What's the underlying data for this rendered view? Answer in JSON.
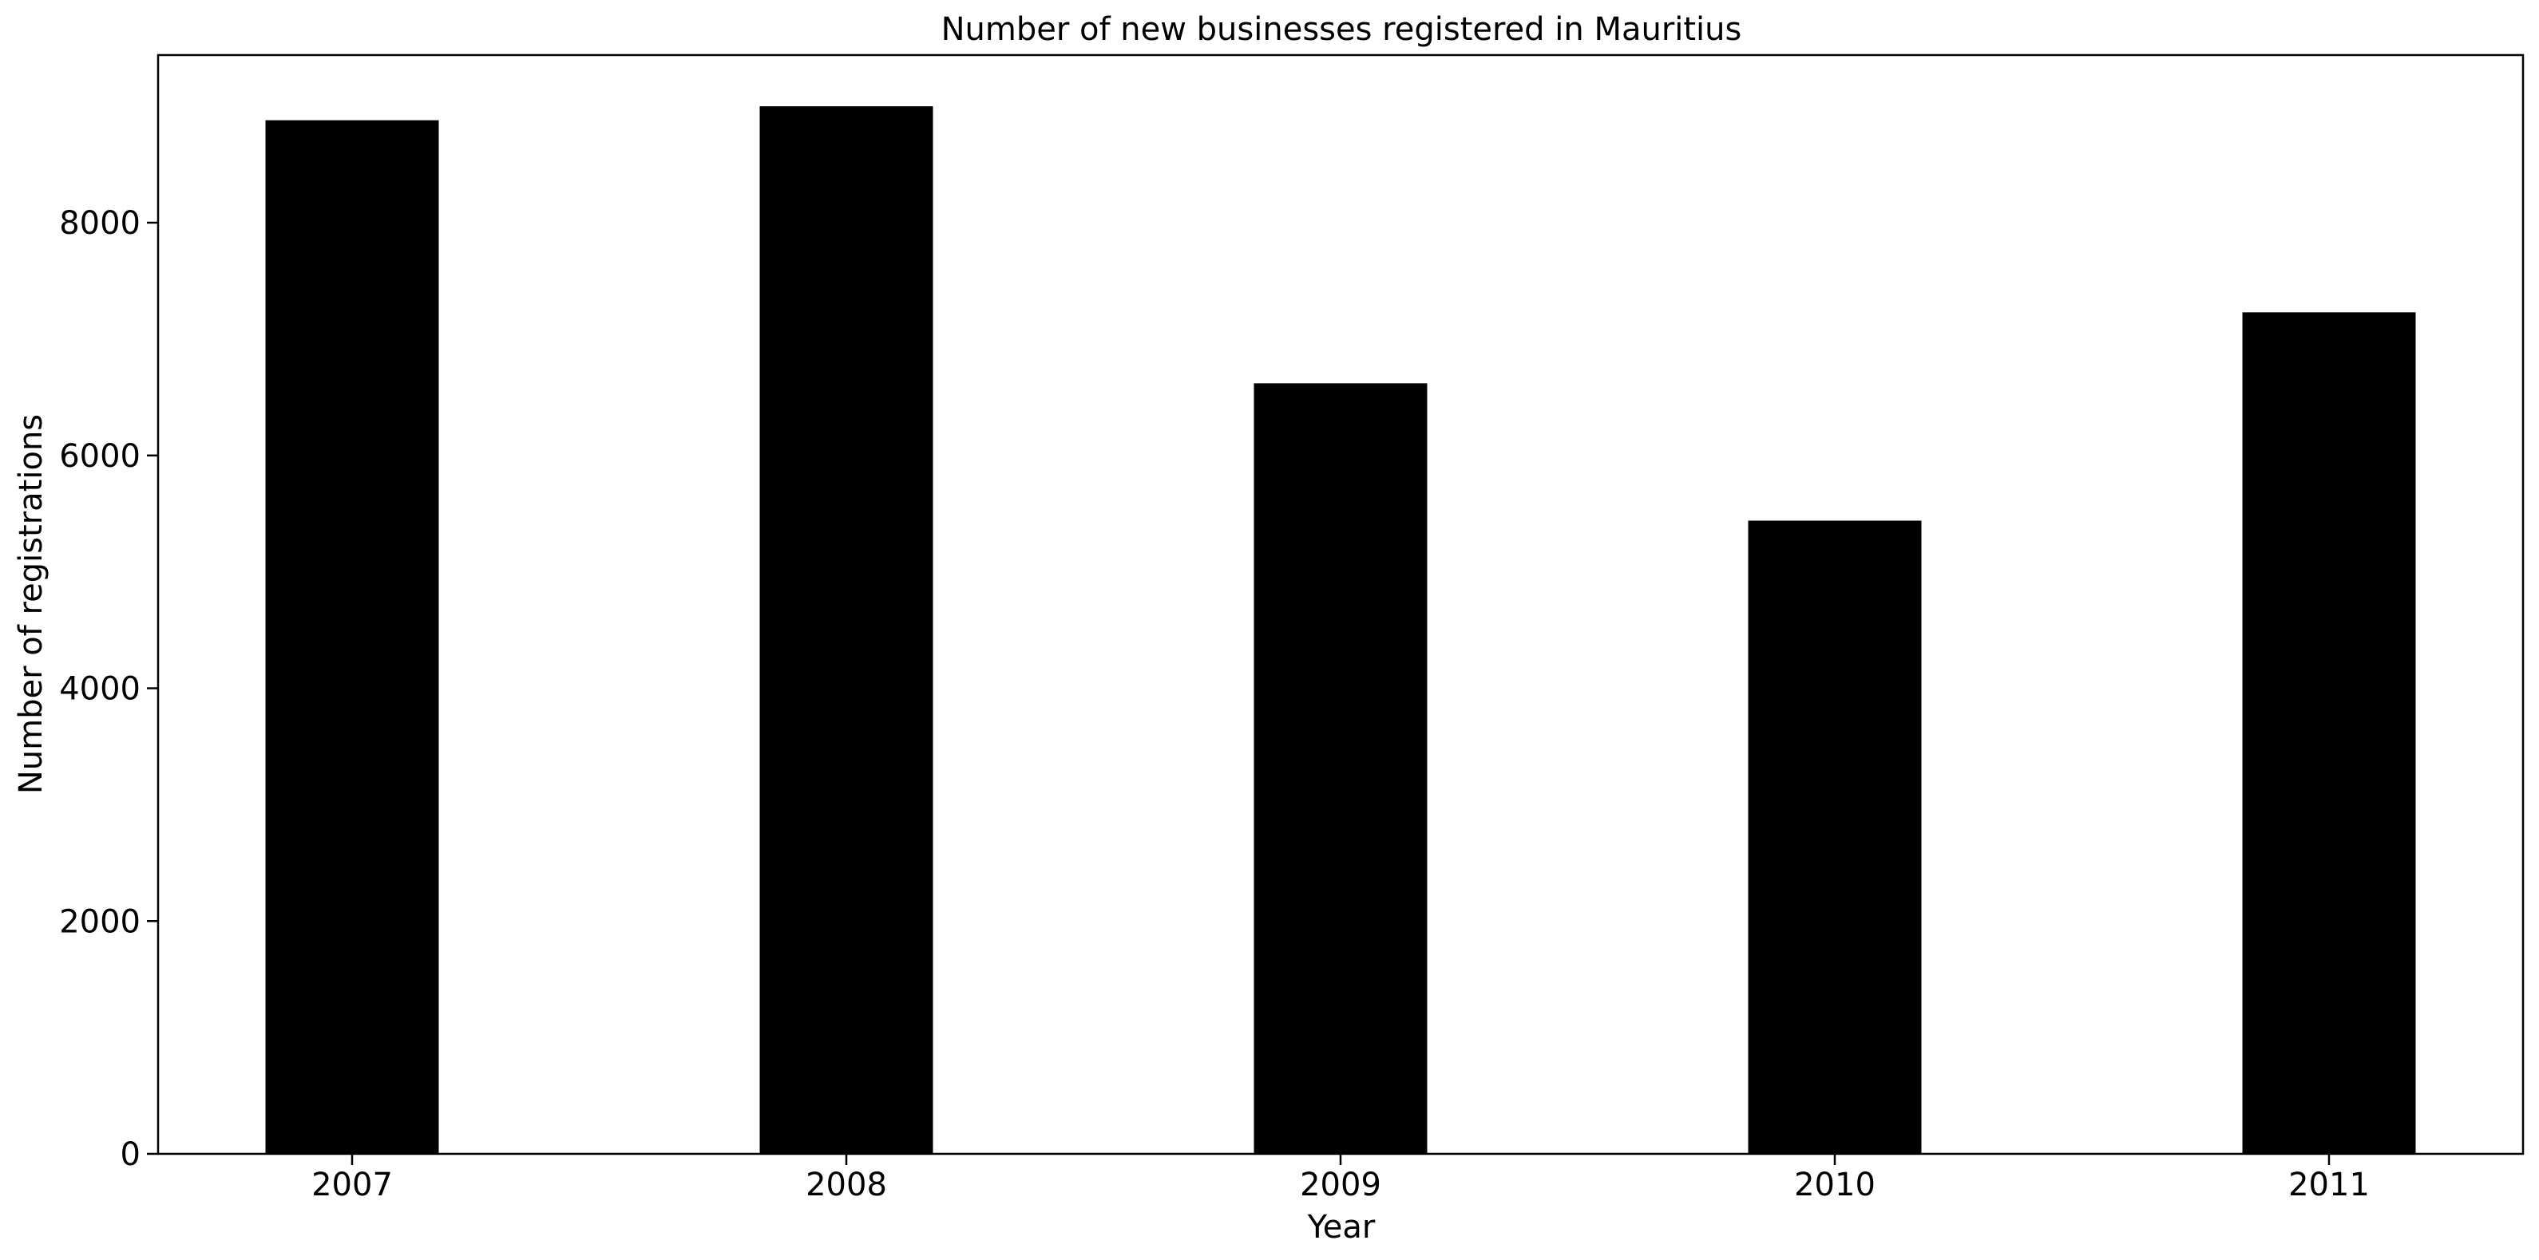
{
  "chart_data": {
    "type": "bar",
    "title": "Number of new businesses registered in Mauritius",
    "xlabel": "Year",
    "ylabel": "Number of registrations",
    "categories": [
      "2007",
      "2008",
      "2009",
      "2010",
      "2011"
    ],
    "values": [
      8880,
      9000,
      6620,
      5440,
      7230
    ],
    "ylim": [
      0,
      9440
    ],
    "yticks": [
      0,
      2000,
      4000,
      6000,
      8000
    ],
    "grid": false,
    "bar_color": "#000000"
  }
}
